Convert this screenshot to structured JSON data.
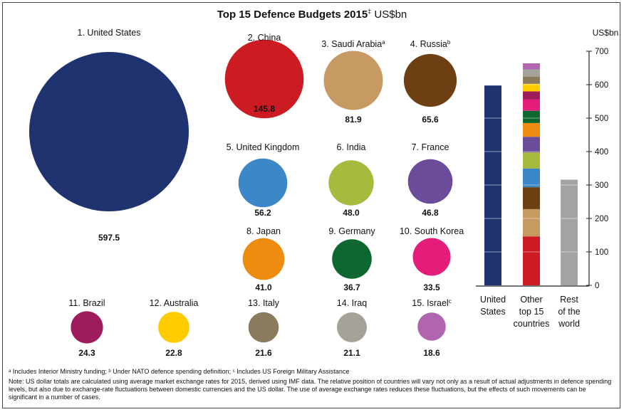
{
  "title": {
    "main": "Top 15 Defence Budgets 2015",
    "marker": "‡",
    "unit": "US$bn"
  },
  "chart_data": [
    {
      "type": "bubble",
      "items": [
        {
          "rank": 1,
          "label": "1. United States",
          "sup": "",
          "value": 597.5,
          "color": "#1F3370"
        },
        {
          "rank": 2,
          "label": "2. China",
          "sup": "",
          "value": 145.8,
          "color": "#CC1B22"
        },
        {
          "rank": 3,
          "label": "3. Saudi Arabia",
          "sup": "a",
          "value": 81.9,
          "color": "#C89A63"
        },
        {
          "rank": 4,
          "label": "4. Russia",
          "sup": "b",
          "value": 65.6,
          "color": "#6E3F12"
        },
        {
          "rank": 5,
          "label": "5. United Kingdom",
          "sup": "",
          "value": 56.2,
          "color": "#3C87C8"
        },
        {
          "rank": 6,
          "label": "6. India",
          "sup": "",
          "value": 48.0,
          "color": "#A7BA3E"
        },
        {
          "rank": 7,
          "label": "7. France",
          "sup": "",
          "value": 46.8,
          "color": "#6B4C9A"
        },
        {
          "rank": 8,
          "label": "8. Japan",
          "sup": "",
          "value": 41.0,
          "color": "#EE8C0F"
        },
        {
          "rank": 9,
          "label": "9. Germany",
          "sup": "",
          "value": 36.7,
          "color": "#0E6630"
        },
        {
          "rank": 10,
          "label": "10. South Korea",
          "sup": "",
          "value": 33.5,
          "color": "#E41C7A"
        },
        {
          "rank": 11,
          "label": "11. Brazil",
          "sup": "",
          "value": 24.3,
          "color": "#9E1B5C"
        },
        {
          "rank": 12,
          "label": "12. Australia",
          "sup": "",
          "value": 22.8,
          "color": "#FFCC00"
        },
        {
          "rank": 13,
          "label": "13. Italy",
          "sup": "",
          "value": 21.6,
          "color": "#8B7B5E"
        },
        {
          "rank": 14,
          "label": "14. Iraq",
          "sup": "",
          "value": 21.1,
          "color": "#A5A299"
        },
        {
          "rank": 15,
          "label": "15. Israel",
          "sup": "c",
          "value": 18.6,
          "color": "#B065AE"
        }
      ]
    },
    {
      "type": "stacked_bar",
      "categories": [
        "United States",
        "Other top 15 countries",
        "Rest of the world"
      ],
      "category_lines": [
        [
          "United",
          "States"
        ],
        [
          "Other",
          "top 15",
          "countries"
        ],
        [
          "Rest",
          "of the",
          "world"
        ]
      ],
      "ylabel": "US$bn",
      "ylim": [
        0,
        700
      ],
      "yticks": [
        0,
        100,
        200,
        300,
        400,
        500,
        600,
        700
      ],
      "us_total": 597.5,
      "rest_total": 316,
      "us_color": "#1F3370",
      "rest_color": "#A3A3A3"
    }
  ],
  "footnote": "ᵃ Includes Interior Ministry funding; ᵇ Under NATO defence spending definition; ᶜ Includes US Foreign Military Assistance",
  "note": "Note: US dollar totals are calculated using average market exchange rates for 2015, derived using IMF data. The relative position of countries will vary not only as a result of actual adjustments in defence spending levels, but also due to exchange-rate fluctuations between domestic currencies and the US dollar. The use of average exchange rates reduces these fluctuations, but the effects of such movements can be significant in a number of cases."
}
